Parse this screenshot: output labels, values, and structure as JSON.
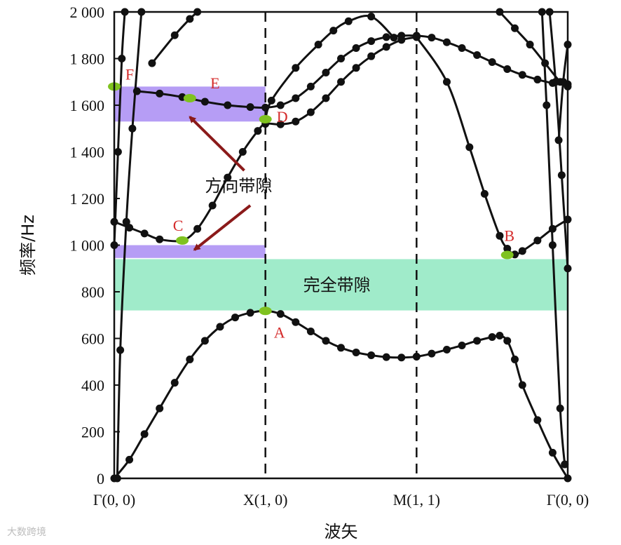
{
  "chart_data": {
    "type": "line",
    "title": "",
    "xlabel": "波矢",
    "ylabel": "频率/Hz",
    "ylim": [
      0,
      2000
    ],
    "x_range": [
      0,
      3
    ],
    "y_ticks": [
      0,
      200,
      400,
      600,
      800,
      1000,
      1200,
      1400,
      1600,
      1800,
      2000
    ],
    "y_tick_labels": [
      "0",
      "200",
      "400",
      "600",
      "800",
      "1 000",
      "1 200",
      "1 400",
      "1 600",
      "1 800",
      "2 000"
    ],
    "x_ticks": [
      0,
      1,
      2,
      3
    ],
    "x_tick_labels": [
      "Γ(0, 0)",
      "X(1, 0)",
      "M(1, 1)",
      "Γ(0, 0)"
    ],
    "vlines": [
      1,
      2
    ],
    "grid": false,
    "series": [
      {
        "values": [
          [
            0,
            0
          ],
          [
            0.1,
            80
          ],
          [
            0.2,
            190
          ],
          [
            0.3,
            300
          ],
          [
            0.4,
            410
          ],
          [
            0.5,
            510
          ],
          [
            0.6,
            590
          ],
          [
            0.7,
            650
          ],
          [
            0.8,
            690
          ],
          [
            0.9,
            710
          ],
          [
            1,
            718
          ],
          [
            1.1,
            705
          ],
          [
            1.2,
            670
          ],
          [
            1.3,
            630
          ],
          [
            1.4,
            590
          ],
          [
            1.5,
            560
          ],
          [
            1.6,
            540
          ],
          [
            1.7,
            528
          ],
          [
            1.8,
            520
          ],
          [
            1.9,
            518
          ],
          [
            2,
            522
          ],
          [
            2.1,
            535
          ],
          [
            2.2,
            552
          ],
          [
            2.3,
            570
          ],
          [
            2.4,
            590
          ],
          [
            2.5,
            606
          ],
          [
            2.55,
            612
          ],
          [
            2.6,
            590
          ],
          [
            2.65,
            510
          ],
          [
            2.7,
            400
          ],
          [
            2.8,
            250
          ],
          [
            2.9,
            110
          ],
          [
            3,
            0
          ]
        ]
      },
      {
        "values": [
          [
            0,
            1100
          ],
          [
            0.1,
            1075
          ],
          [
            0.2,
            1050
          ],
          [
            0.3,
            1025
          ],
          [
            0.45,
            1020
          ],
          [
            0.55,
            1070
          ],
          [
            0.65,
            1170
          ],
          [
            0.75,
            1290
          ],
          [
            0.85,
            1400
          ],
          [
            0.95,
            1490
          ],
          [
            1,
            1520
          ],
          [
            1.1,
            1518
          ],
          [
            1.2,
            1530
          ],
          [
            1.3,
            1570
          ],
          [
            1.4,
            1630
          ],
          [
            1.5,
            1700
          ],
          [
            1.6,
            1760
          ],
          [
            1.7,
            1810
          ],
          [
            1.8,
            1850
          ],
          [
            1.9,
            1880
          ],
          [
            2,
            1892
          ]
        ]
      },
      {
        "values": [
          [
            0.15,
            1660
          ],
          [
            0.3,
            1650
          ],
          [
            0.45,
            1635
          ],
          [
            0.6,
            1615
          ],
          [
            0.75,
            1600
          ],
          [
            0.9,
            1592
          ],
          [
            1,
            1590
          ],
          [
            1.1,
            1600
          ],
          [
            1.2,
            1630
          ],
          [
            1.3,
            1680
          ],
          [
            1.4,
            1740
          ],
          [
            1.5,
            1800
          ],
          [
            1.6,
            1845
          ],
          [
            1.7,
            1875
          ],
          [
            1.8,
            1892
          ],
          [
            1.9,
            1898
          ],
          [
            2,
            1898
          ],
          [
            2.1,
            1890
          ],
          [
            2.2,
            1870
          ],
          [
            2.3,
            1845
          ],
          [
            2.4,
            1815
          ],
          [
            2.5,
            1785
          ],
          [
            2.6,
            1755
          ],
          [
            2.7,
            1730
          ],
          [
            2.8,
            1710
          ],
          [
            2.9,
            1695
          ],
          [
            3,
            1690
          ]
        ]
      },
      {
        "values": [
          [
            0,
            1000
          ],
          [
            0.025,
            1400
          ],
          [
            0.05,
            1800
          ],
          [
            0.07,
            2000
          ]
        ]
      },
      {
        "values": [
          [
            0.02,
            0
          ],
          [
            0.04,
            550
          ],
          [
            0.08,
            1100
          ],
          [
            0.12,
            1500
          ],
          [
            0.18,
            2000
          ]
        ]
      },
      {
        "values": [
          [
            0.25,
            1780
          ],
          [
            0.4,
            1900
          ],
          [
            0.5,
            1970
          ],
          [
            0.55,
            2000
          ]
        ]
      },
      {
        "values": [
          [
            1,
            1540
          ],
          [
            1.04,
            1620
          ],
          [
            1.2,
            1760
          ],
          [
            1.35,
            1860
          ],
          [
            1.45,
            1920
          ],
          [
            1.55,
            1960
          ],
          [
            1.7,
            1980
          ],
          [
            1.85,
            1890
          ]
        ]
      },
      {
        "values": [
          [
            2,
            1892
          ],
          [
            2.2,
            1700
          ],
          [
            2.35,
            1420
          ],
          [
            2.45,
            1220
          ],
          [
            2.55,
            1040
          ],
          [
            2.6,
            985
          ],
          [
            2.65,
            960
          ],
          [
            2.7,
            975
          ],
          [
            2.8,
            1020
          ],
          [
            2.9,
            1070
          ],
          [
            3,
            1110
          ]
        ]
      },
      {
        "values": [
          [
            2.55,
            2000
          ],
          [
            2.65,
            1930
          ],
          [
            2.75,
            1860
          ],
          [
            2.85,
            1780
          ],
          [
            2.95,
            1700
          ],
          [
            3,
            1680
          ]
        ]
      },
      {
        "values": [
          [
            2.88,
            2000
          ],
          [
            2.92,
            1700
          ],
          [
            2.96,
            1300
          ],
          [
            3,
            900
          ]
        ]
      },
      {
        "values": [
          [
            2.83,
            2000
          ],
          [
            2.86,
            1600
          ],
          [
            2.9,
            1000
          ],
          [
            2.95,
            300
          ],
          [
            2.98,
            60
          ]
        ]
      },
      {
        "values": [
          [
            2.94,
            1450
          ],
          [
            2.97,
            1700
          ],
          [
            3,
            1860
          ]
        ]
      }
    ],
    "bands": [
      {
        "label": "完全带隙",
        "x": [
          0,
          3
        ],
        "y": [
          720,
          940
        ],
        "color": "#8fe7c1"
      },
      {
        "x": [
          0,
          1
        ],
        "y": [
          1530,
          1680
        ],
        "color": "#a98cf3"
      },
      {
        "x": [
          0,
          1
        ],
        "y": [
          945,
          1000
        ],
        "color": "#a98cf3"
      }
    ],
    "highlight_points": [
      {
        "label": "A",
        "x": 1,
        "y": 718
      },
      {
        "label": "B",
        "x": 2.6,
        "y": 958
      },
      {
        "label": "C",
        "x": 0.45,
        "y": 1020
      },
      {
        "label": "D",
        "x": 1,
        "y": 1540
      },
      {
        "label": "E",
        "x": 0.5,
        "y": 1630
      },
      {
        "label": "F",
        "x": 0,
        "y": 1680
      }
    ],
    "annotations": {
      "direction_gap": "方向带隙",
      "full_gap": "完全带隙"
    },
    "colors": {
      "curve": "#111111",
      "arrow": "#8b1a1a",
      "point": "#7fc21f",
      "label": "#d42a2a"
    }
  },
  "watermark": "大数跨境"
}
